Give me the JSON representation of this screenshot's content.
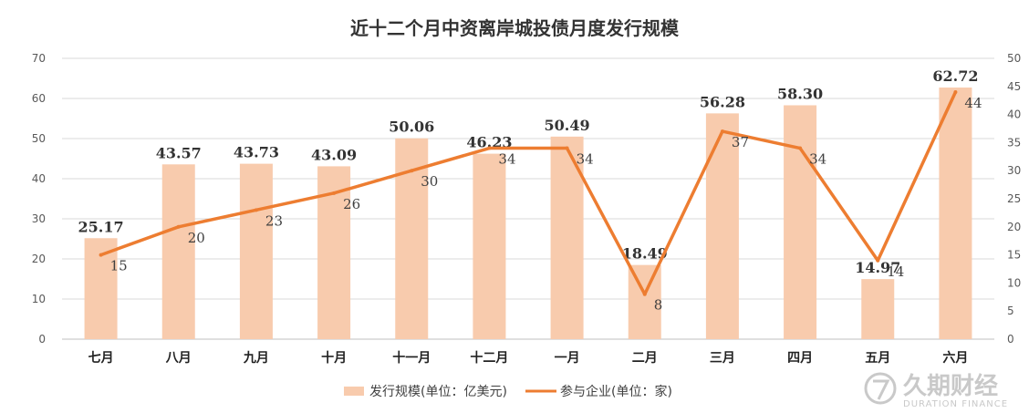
{
  "chart_data": {
    "type": "bar+line",
    "title": "近十二个月中资离岸城投债月度发行规模",
    "categories": [
      "七月",
      "八月",
      "九月",
      "十月",
      "十一月",
      "十二月",
      "一月",
      "二月",
      "三月",
      "四月",
      "五月",
      "六月"
    ],
    "series": [
      {
        "name": "发行规模(单位：亿美元)",
        "type": "bar",
        "axis": "left",
        "values": [
          25.17,
          43.57,
          43.73,
          43.09,
          50.06,
          46.23,
          50.49,
          18.49,
          56.28,
          58.3,
          14.97,
          62.72
        ],
        "labels": [
          "25.17",
          "43.57",
          "43.73",
          "43.09",
          "50.06",
          "46.23",
          "50.49",
          "18.49",
          "56.28",
          "58.30",
          "14.97",
          "62.72"
        ],
        "color": "#f8cbad"
      },
      {
        "name": "参与企业(单位：家)",
        "type": "line",
        "axis": "right",
        "values": [
          15,
          20,
          23,
          26,
          30,
          34,
          34,
          8,
          37,
          34,
          14,
          44
        ],
        "labels": [
          "15",
          "20",
          "23",
          "26",
          "30",
          "34",
          "34",
          "8",
          "37",
          "34",
          "14",
          "44"
        ],
        "color": "#ed7d31"
      }
    ],
    "yleft": {
      "min": 0,
      "max": 70,
      "step": 10,
      "ticks": [
        "0",
        "10",
        "20",
        "30",
        "40",
        "50",
        "60",
        "70"
      ]
    },
    "yright": {
      "min": 0,
      "max": 50,
      "step": 5,
      "ticks": [
        "0",
        "5",
        "10",
        "15",
        "20",
        "25",
        "30",
        "35",
        "40",
        "45",
        "50"
      ]
    },
    "grid": true,
    "legend_position": "bottom"
  },
  "watermark": {
    "text_cn": "久期财经",
    "text_en": "DURATION FINANCE"
  }
}
